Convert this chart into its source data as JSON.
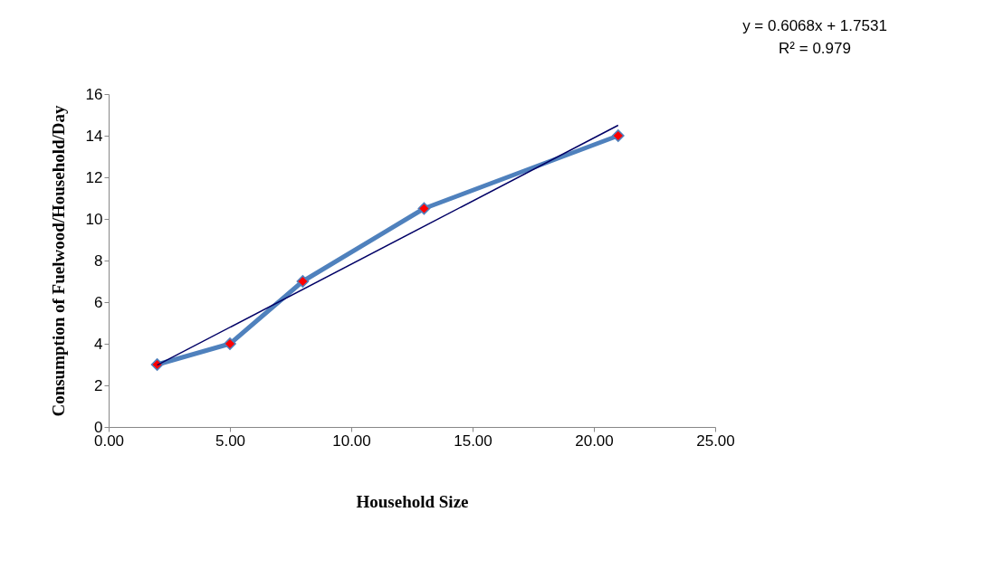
{
  "chart_data": {
    "type": "line",
    "xlabel": "Household  Size",
    "ylabel": "Consumption of Fuelwood/Household/Day",
    "x": [
      2,
      5,
      8,
      13,
      21
    ],
    "series": [
      {
        "color": "#4f81bd",
        "colors": [
          "#ff0000",
          "#ff0000",
          "#ff0000",
          "#ff0000",
          "#ff0000"
        ],
        "marker": "diamond",
        "values": [
          3,
          4,
          7,
          10.5,
          14
        ]
      },
      {
        "color": "#000066",
        "marker": "none",
        "x": [
          2,
          21
        ],
        "values": [
          2.97,
          14.5
        ]
      }
    ],
    "xlim": [
      0,
      25
    ],
    "ylim": [
      0,
      16
    ],
    "xticks": [
      {
        "value": 0,
        "label": "0.00"
      },
      {
        "value": 5,
        "label": "5.00"
      },
      {
        "value": 10,
        "label": "10.00"
      },
      {
        "value": 15,
        "label": "15.00"
      },
      {
        "value": 20,
        "label": "20.00"
      },
      {
        "value": 25,
        "label": "25.00"
      }
    ],
    "yticks": [
      0,
      2,
      4,
      6,
      8,
      10,
      12,
      14,
      16
    ],
    "grid": false,
    "legend": false,
    "annotations": [
      "y = 0.6068x + 1.7531",
      "R² = 0.979"
    ]
  }
}
